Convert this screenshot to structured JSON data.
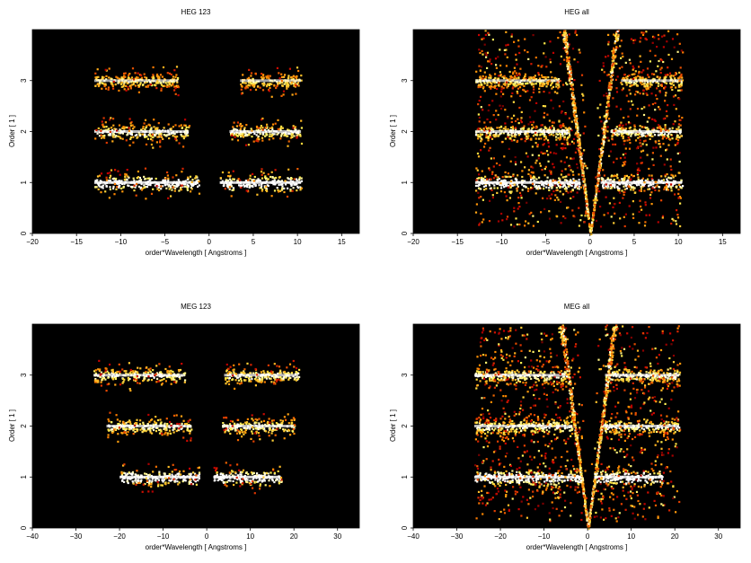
{
  "chart_data": [
    {
      "type": "heatmap",
      "title": "HEG 123",
      "xlabel": "order*Wavelength [ Angstroms ]",
      "ylabel": "Order [ 1 ]",
      "xlim": [
        -20,
        17
      ],
      "ylim": [
        0,
        4
      ],
      "xticks": [
        -20,
        -15,
        -10,
        -5,
        0,
        5,
        10,
        15
      ],
      "yticks": [
        0,
        1,
        2,
        3
      ],
      "bands": [
        {
          "order": 1,
          "ranges": [
            [
              -13,
              -1.2
            ],
            [
              1.2,
              10.4
            ]
          ],
          "intensity": 1.0
        },
        {
          "order": 2,
          "ranges": [
            [
              -13,
              -2.3
            ],
            [
              2.3,
              10.4
            ]
          ],
          "intensity": 0.85
        },
        {
          "order": 3,
          "ranges": [
            [
              -13,
              -3.5
            ],
            [
              3.5,
              10.4
            ]
          ],
          "intensity": 0.75
        }
      ],
      "v_arms": false
    },
    {
      "type": "heatmap",
      "title": "HEG all",
      "xlabel": "order*Wavelength [ Angstroms ]",
      "ylabel": "Order [ 1 ]",
      "xlim": [
        -20,
        17
      ],
      "ylim": [
        0,
        4
      ],
      "xticks": [
        -20,
        -15,
        -10,
        -5,
        0,
        5,
        10,
        15
      ],
      "yticks": [
        0,
        1,
        2,
        3
      ],
      "bands": [
        {
          "order": 1,
          "ranges": [
            [
              -13,
              -1.2
            ],
            [
              1.2,
              10.4
            ]
          ],
          "intensity": 1.0
        },
        {
          "order": 2,
          "ranges": [
            [
              -13,
              -2.3
            ],
            [
              2.3,
              10.4
            ]
          ],
          "intensity": 0.85
        },
        {
          "order": 3,
          "ranges": [
            [
              -13,
              -3.5
            ],
            [
              3.5,
              10.4
            ]
          ],
          "intensity": 0.75
        }
      ],
      "v_arms": true,
      "scatter_xlim": [
        -13,
        10.4
      ]
    },
    {
      "type": "heatmap",
      "title": "MEG 123",
      "xlabel": "order*Wavelength [ Angstroms ]",
      "ylabel": "Order [ 1 ]",
      "xlim": [
        -40,
        35
      ],
      "ylim": [
        0,
        4
      ],
      "xticks": [
        -40,
        -30,
        -20,
        -10,
        0,
        10,
        20,
        30
      ],
      "yticks": [
        0,
        1,
        2,
        3
      ],
      "bands": [
        {
          "order": 1,
          "ranges": [
            [
              -20,
              -1.5
            ],
            [
              1.5,
              17
            ]
          ],
          "intensity": 1.0
        },
        {
          "order": 2,
          "ranges": [
            [
              -23,
              -3.5
            ],
            [
              3.5,
              20
            ]
          ],
          "intensity": 0.85
        },
        {
          "order": 3,
          "ranges": [
            [
              -26,
              -5
            ],
            [
              4,
              21
            ]
          ],
          "intensity": 0.85
        }
      ],
      "v_arms": false
    },
    {
      "type": "heatmap",
      "title": "MEG all",
      "xlabel": "order*Wavelength [ Angstroms ]",
      "ylabel": "Order [ 1 ]",
      "xlim": [
        -40,
        35
      ],
      "ylim": [
        0,
        4
      ],
      "xticks": [
        -40,
        -30,
        -20,
        -10,
        0,
        10,
        20,
        30
      ],
      "yticks": [
        0,
        1,
        2,
        3
      ],
      "bands": [
        {
          "order": 1,
          "ranges": [
            [
              -26,
              -1.5
            ],
            [
              1.5,
              17
            ]
          ],
          "intensity": 1.0
        },
        {
          "order": 2,
          "ranges": [
            [
              -26,
              -3.5
            ],
            [
              3.5,
              21
            ]
          ],
          "intensity": 0.85
        },
        {
          "order": 3,
          "ranges": [
            [
              -26,
              -5
            ],
            [
              4,
              21
            ]
          ],
          "intensity": 0.85
        }
      ],
      "v_arms": true,
      "scatter_xlim": [
        -26,
        21
      ]
    }
  ]
}
